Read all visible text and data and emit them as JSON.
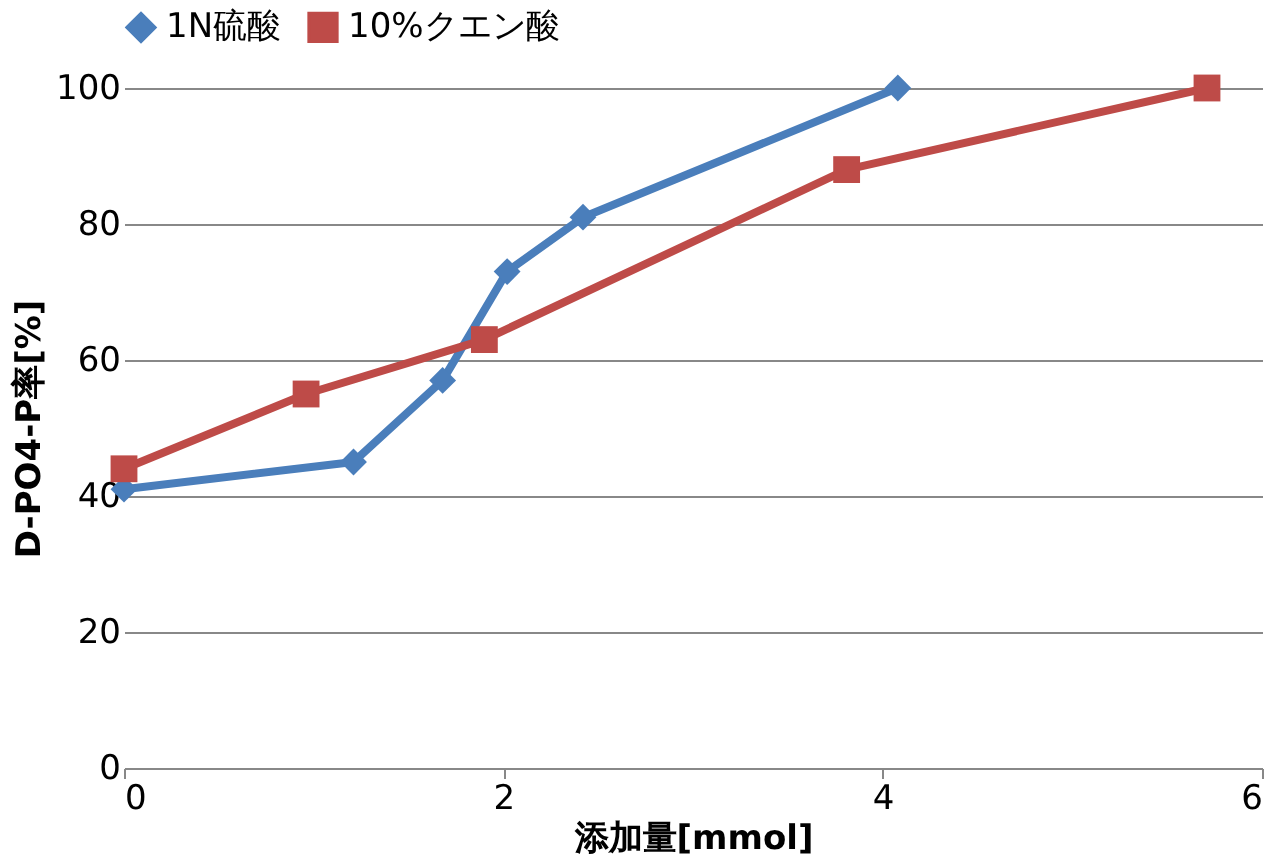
{
  "chart_data": {
    "type": "line",
    "xlabel": "添加量[mmol]",
    "ylabel": "D-PO4-P率[%]",
    "xlim": [
      0,
      6
    ],
    "xticks": [
      0,
      2,
      4,
      6
    ],
    "ylim": [
      0,
      100
    ],
    "yticks": [
      0,
      20,
      40,
      60,
      80,
      100
    ],
    "grid": "y",
    "legend": "top",
    "line_style": "solid",
    "series": [
      {
        "name": "1N硫酸",
        "color": "#4a7ebb",
        "marker": "diamond",
        "x": [
          0,
          1.21,
          1.68,
          2.02,
          2.42,
          4.08
        ],
        "values": [
          41,
          45,
          57,
          73,
          81,
          100
        ]
      },
      {
        "name": "10%クエン酸",
        "color": "#be4b48",
        "marker": "square",
        "x": [
          0,
          0.96,
          1.9,
          3.81,
          5.71
        ],
        "values": [
          44,
          55,
          63,
          88,
          100
        ]
      }
    ]
  }
}
